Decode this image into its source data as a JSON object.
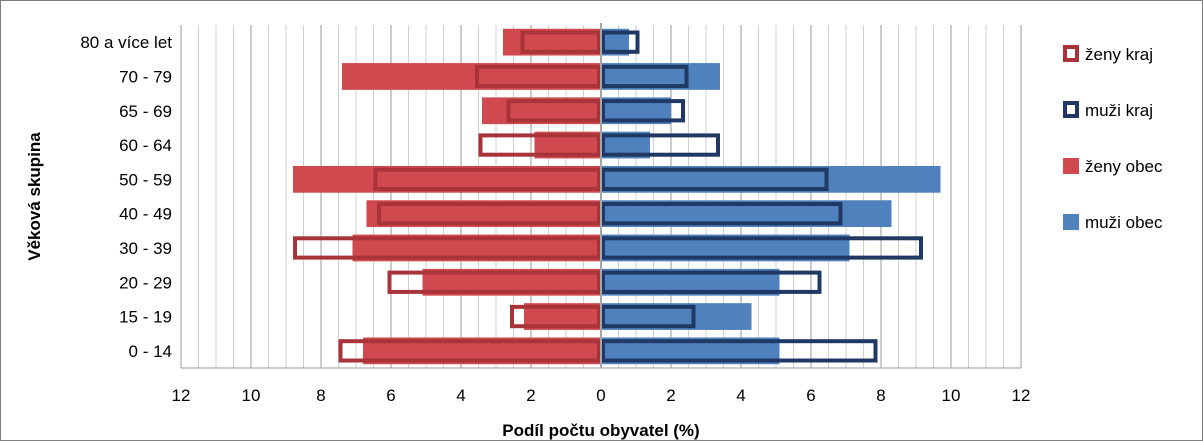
{
  "chart_data": {
    "type": "bar",
    "orientation": "horizontal",
    "layout": "population-pyramid",
    "xlabel": "Podíl počtu obyvatel (%)",
    "ylabel": "Věková skupina",
    "categories": [
      "0 - 14",
      "15 - 19",
      "20 - 29",
      "30 - 39",
      "40 - 49",
      "50 - 59",
      "60 - 64",
      "65 - 69",
      "70 - 79",
      "80 a více let"
    ],
    "xlim": [
      -12,
      12
    ],
    "x_ticks": [
      -12,
      -10,
      -8,
      -6,
      -4,
      -2,
      0,
      2,
      4,
      6,
      8,
      10,
      12
    ],
    "x_tick_labels": [
      "12",
      "10",
      "8",
      "6",
      "4",
      "2",
      "0",
      "2",
      "4",
      "6",
      "8",
      "10",
      "12"
    ],
    "grid": "vertical",
    "legend_position": "right",
    "series": [
      {
        "name": "ženy kraj",
        "side": "left",
        "style": "outline",
        "color": "#a8343a",
        "values": [
          7.5,
          2.6,
          6.1,
          8.8,
          6.4,
          6.5,
          3.5,
          2.7,
          3.6,
          2.3
        ]
      },
      {
        "name": "muži kraj",
        "side": "right",
        "style": "outline",
        "color": "#1f3864",
        "values": [
          7.9,
          2.7,
          6.3,
          9.2,
          6.9,
          6.5,
          3.4,
          2.4,
          2.5,
          1.1
        ]
      },
      {
        "name": "ženy obec",
        "side": "left",
        "style": "fill",
        "color": "#d0494f",
        "values": [
          6.8,
          2.2,
          5.1,
          7.1,
          6.7,
          8.8,
          1.9,
          3.4,
          7.4,
          2.8
        ]
      },
      {
        "name": "muži obec",
        "side": "right",
        "style": "fill",
        "color": "#4f81bd",
        "values": [
          5.1,
          4.3,
          5.1,
          7.1,
          8.3,
          9.7,
          1.4,
          2.0,
          3.4,
          0.8
        ]
      }
    ]
  }
}
